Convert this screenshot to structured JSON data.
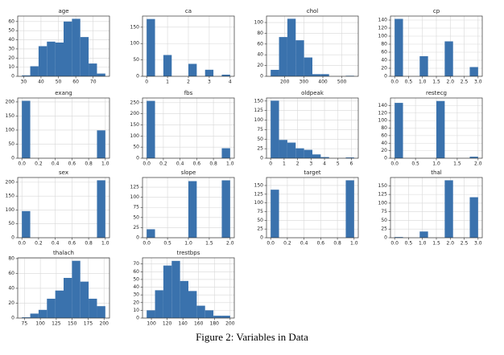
{
  "chart_data": [
    {
      "type": "histogram",
      "title": "age",
      "bins": [
        29,
        33.8,
        38.6,
        43.4,
        48.2,
        53,
        57.8,
        62.6,
        67.4,
        72.2,
        77
      ],
      "counts": [
        1,
        11,
        33,
        38,
        37,
        60,
        63,
        43,
        14,
        3
      ],
      "color": "#3a72ad",
      "xlim": [
        26.6,
        79.4
      ],
      "ylim": [
        0,
        66
      ],
      "xticks": [
        30,
        40,
        50,
        60,
        70
      ],
      "yticks": [
        0,
        10,
        20,
        30,
        40,
        50,
        60
      ],
      "grid": true
    },
    {
      "type": "histogram",
      "title": "ca",
      "bins": [
        0,
        0.4,
        0.8,
        1.2,
        1.6,
        2,
        2.4,
        2.8,
        3.2,
        3.6,
        4
      ],
      "counts": [
        175,
        0,
        65,
        0,
        0,
        38,
        0,
        20,
        0,
        5
      ],
      "color": "#3a72ad",
      "xlim": [
        -0.2,
        4.2
      ],
      "ylim": [
        0,
        184
      ],
      "xticks": [
        0,
        1,
        2,
        3,
        4
      ],
      "yticks": [
        0,
        50,
        100,
        150
      ],
      "grid": true
    },
    {
      "type": "histogram",
      "title": "chol",
      "bins": [
        126,
        169.8,
        213.6,
        257.4,
        301.2,
        345,
        388.8,
        432.6,
        476.4,
        520.2,
        564
      ],
      "counts": [
        12,
        73,
        107,
        67,
        35,
        4,
        4,
        0,
        0,
        1
      ],
      "color": "#3a72ad",
      "xlim": [
        104,
        586
      ],
      "ylim": [
        0,
        112
      ],
      "xticks": [
        200,
        300,
        400,
        500
      ],
      "yticks": [
        0,
        20,
        40,
        60,
        80,
        100
      ],
      "grid": true
    },
    {
      "type": "histogram",
      "title": "cp",
      "bins": [
        0,
        0.3,
        0.6,
        0.9,
        1.2,
        1.5,
        1.8,
        2.1,
        2.4,
        2.7,
        3
      ],
      "counts": [
        143,
        0,
        0,
        50,
        0,
        0,
        87,
        0,
        0,
        23
      ],
      "color": "#3a72ad",
      "xlim": [
        -0.15,
        3.15
      ],
      "ylim": [
        0,
        150
      ],
      "xticks": [
        {
          "value": 0,
          "label": "0.0"
        },
        {
          "value": 0.5,
          "label": "0.5"
        },
        {
          "value": 1,
          "label": "1.0"
        },
        {
          "value": 1.5,
          "label": "1.5"
        },
        {
          "value": 2,
          "label": "2.0"
        },
        {
          "value": 2.5,
          "label": "2.5"
        },
        {
          "value": 3,
          "label": "3.0"
        }
      ],
      "yticks": [
        0,
        20,
        40,
        60,
        80,
        100,
        120,
        140
      ],
      "grid": true
    },
    {
      "type": "histogram",
      "title": "exang",
      "bins": [
        0,
        0.1,
        0.2,
        0.3,
        0.4,
        0.5,
        0.6,
        0.7,
        0.8,
        0.9,
        1
      ],
      "counts": [
        204,
        0,
        0,
        0,
        0,
        0,
        0,
        0,
        0,
        99
      ],
      "color": "#3a72ad",
      "xlim": [
        -0.05,
        1.05
      ],
      "ylim": [
        0,
        214
      ],
      "xticks": [
        {
          "value": 0,
          "label": "0.0"
        },
        0.2,
        0.4,
        0.6,
        0.8,
        {
          "value": 1,
          "label": "1.0"
        }
      ],
      "yticks": [
        0,
        50,
        100,
        150,
        200
      ],
      "grid": true
    },
    {
      "type": "histogram",
      "title": "fbs",
      "bins": [
        0,
        0.1,
        0.2,
        0.3,
        0.4,
        0.5,
        0.6,
        0.7,
        0.8,
        0.9,
        1
      ],
      "counts": [
        258,
        0,
        0,
        0,
        0,
        0,
        0,
        0,
        0,
        45
      ],
      "color": "#3a72ad",
      "xlim": [
        -0.05,
        1.05
      ],
      "ylim": [
        0,
        271
      ],
      "xticks": [
        {
          "value": 0,
          "label": "0.0"
        },
        0.2,
        0.4,
        0.6,
        0.8,
        {
          "value": 1,
          "label": "1.0"
        }
      ],
      "yticks": [
        0,
        50,
        100,
        150,
        200,
        250
      ],
      "grid": true
    },
    {
      "type": "histogram",
      "title": "oldpeak",
      "bins": [
        0,
        0.62,
        1.24,
        1.86,
        2.48,
        3.1,
        3.72,
        4.34,
        4.96,
        5.58,
        6.2
      ],
      "counts": [
        151,
        48,
        41,
        26,
        22,
        10,
        3,
        0,
        0,
        2
      ],
      "color": "#3a72ad",
      "xlim": [
        -0.31,
        6.51
      ],
      "ylim": [
        0,
        158
      ],
      "xticks": [
        0,
        1,
        2,
        3,
        4,
        5,
        6
      ],
      "yticks": [
        0,
        25,
        50,
        75,
        100,
        125,
        150
      ],
      "grid": true
    },
    {
      "type": "histogram",
      "title": "restecg",
      "bins": [
        0,
        0.2,
        0.4,
        0.6,
        0.8,
        1,
        1.2,
        1.4,
        1.6,
        1.8,
        2
      ],
      "counts": [
        147,
        0,
        0,
        0,
        0,
        152,
        0,
        0,
        0,
        4
      ],
      "color": "#3a72ad",
      "xlim": [
        -0.1,
        2.1
      ],
      "ylim": [
        0,
        160
      ],
      "xticks": [
        {
          "value": 0,
          "label": "0.0"
        },
        0.5,
        {
          "value": 1,
          "label": "1.0"
        },
        1.5,
        {
          "value": 2,
          "label": "2.0"
        }
      ],
      "yticks": [
        0,
        20,
        40,
        60,
        80,
        100,
        120,
        140
      ],
      "grid": true
    },
    {
      "type": "histogram",
      "title": "sex",
      "bins": [
        0,
        0.1,
        0.2,
        0.3,
        0.4,
        0.5,
        0.6,
        0.7,
        0.8,
        0.9,
        1
      ],
      "counts": [
        96,
        0,
        0,
        0,
        0,
        0,
        0,
        0,
        0,
        207
      ],
      "color": "#3a72ad",
      "xlim": [
        -0.05,
        1.05
      ],
      "ylim": [
        0,
        217
      ],
      "xticks": [
        {
          "value": 0,
          "label": "0.0"
        },
        0.2,
        0.4,
        0.6,
        0.8,
        {
          "value": 1,
          "label": "1.0"
        }
      ],
      "yticks": [
        0,
        50,
        100,
        150,
        200
      ],
      "grid": true
    },
    {
      "type": "histogram",
      "title": "slope",
      "bins": [
        0,
        0.2,
        0.4,
        0.6,
        0.8,
        1,
        1.2,
        1.4,
        1.6,
        1.8,
        2
      ],
      "counts": [
        21,
        0,
        0,
        0,
        0,
        140,
        0,
        0,
        0,
        142
      ],
      "color": "#3a72ad",
      "xlim": [
        -0.1,
        2.1
      ],
      "ylim": [
        0,
        149
      ],
      "xticks": [
        {
          "value": 0,
          "label": "0.0"
        },
        0.5,
        {
          "value": 1,
          "label": "1.0"
        },
        1.5,
        {
          "value": 2,
          "label": "2.0"
        }
      ],
      "yticks": [
        0,
        25,
        50,
        75,
        100,
        125
      ],
      "grid": true
    },
    {
      "type": "histogram",
      "title": "target",
      "bins": [
        0,
        0.1,
        0.2,
        0.3,
        0.4,
        0.5,
        0.6,
        0.7,
        0.8,
        0.9,
        1
      ],
      "counts": [
        138,
        0,
        0,
        0,
        0,
        0,
        0,
        0,
        0,
        165
      ],
      "color": "#3a72ad",
      "xlim": [
        -0.05,
        1.05
      ],
      "ylim": [
        0,
        173
      ],
      "xticks": [
        {
          "value": 0,
          "label": "0.0"
        },
        0.2,
        0.4,
        0.6,
        0.8,
        {
          "value": 1,
          "label": "1.0"
        }
      ],
      "yticks": [
        0,
        25,
        50,
        75,
        100,
        125,
        150
      ],
      "grid": true
    },
    {
      "type": "histogram",
      "title": "thal",
      "bins": [
        0,
        0.3,
        0.6,
        0.9,
        1.2,
        1.5,
        1.8,
        2.1,
        2.4,
        2.7,
        3
      ],
      "counts": [
        2,
        0,
        0,
        18,
        0,
        0,
        166,
        0,
        0,
        117
      ],
      "color": "#3a72ad",
      "xlim": [
        -0.15,
        3.15
      ],
      "ylim": [
        0,
        174
      ],
      "xticks": [
        {
          "value": 0,
          "label": "0.0"
        },
        0.5,
        {
          "value": 1,
          "label": "1.0"
        },
        1.5,
        {
          "value": 2,
          "label": "2.0"
        },
        2.5,
        {
          "value": 3,
          "label": "3.0"
        }
      ],
      "yticks": [
        0,
        25,
        50,
        75,
        100,
        125,
        150
      ],
      "grid": true
    },
    {
      "type": "histogram",
      "title": "thalach",
      "bins": [
        71,
        84.1,
        97.2,
        110.3,
        123.4,
        136.5,
        149.6,
        162.7,
        175.8,
        188.9,
        202
      ],
      "counts": [
        1,
        6,
        11,
        26,
        37,
        54,
        77,
        49,
        26,
        16
      ],
      "color": "#3a72ad",
      "xlim": [
        64.45,
        208.55
      ],
      "ylim": [
        0,
        81
      ],
      "xticks": [
        75,
        100,
        125,
        150,
        175,
        200
      ],
      "yticks": [
        0,
        20,
        40,
        60,
        80
      ],
      "grid": true
    },
    {
      "type": "histogram",
      "title": "trestbps",
      "bins": [
        94,
        104.6,
        115.2,
        125.8,
        136.4,
        147,
        157.6,
        168.2,
        178.8,
        189.4,
        200
      ],
      "counts": [
        10,
        36,
        68,
        74,
        48,
        35,
        16,
        10,
        3,
        3
      ],
      "color": "#3a72ad",
      "xlim": [
        88.7,
        205.3
      ],
      "ylim": [
        0,
        78
      ],
      "xticks": [
        100,
        120,
        140,
        160,
        180,
        200
      ],
      "yticks": [
        0,
        10,
        20,
        30,
        40,
        50,
        60,
        70
      ],
      "grid": true
    }
  ],
  "caption": "Figure 2: Variables in Data"
}
